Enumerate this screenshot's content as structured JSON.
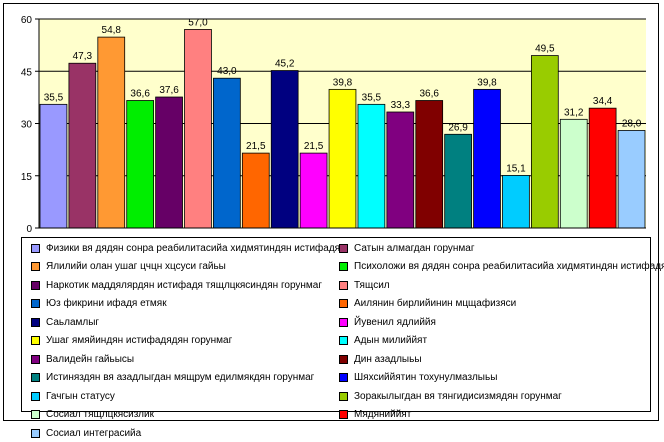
{
  "chart_data": {
    "type": "bar",
    "ylim": [
      0,
      60
    ],
    "yticks": [
      "0",
      "15",
      "30",
      "45",
      "60"
    ],
    "grid": true,
    "legend_position": "bottom",
    "bars": [
      {
        "label": "Физики вя дядян сонра реабилитасийа хидмятиндян истифадя",
        "value": 35.5,
        "value_label": "35,5",
        "color": "#9999ff"
      },
      {
        "label": "Сатын алмагдан горунмаг",
        "value": 47.3,
        "value_label": "47,3",
        "color": "#993366"
      },
      {
        "label": "Ялилийи олан ушаг цчцн хцсуси гайьы",
        "value": 54.8,
        "value_label": "54,8",
        "color": "#ff9933"
      },
      {
        "label": "Психоложи вя дядян сонра реабилитасийа хидмятиндян истифадя",
        "value": 36.6,
        "value_label": "36,6",
        "color": "#00ee00"
      },
      {
        "label": "Наркотик маддялярдян истифадя тящлцкясиндян горунмаг",
        "value": 37.6,
        "value_label": "37,6",
        "color": "#660066"
      },
      {
        "label": "Тящсил",
        "value": 57.0,
        "value_label": "57,0",
        "color": "#ff8080"
      },
      {
        "label": "Юз фикрини ифадя етмяк",
        "value": 43.0,
        "value_label": "43,0",
        "color": "#0066cc"
      },
      {
        "label": "Аилянин бирлийинин мцщафизяси",
        "value": 21.5,
        "value_label": "21,5",
        "color": "#ff6600"
      },
      {
        "label": "Саьламлыг",
        "value": 45.2,
        "value_label": "45,2",
        "color": "#000080"
      },
      {
        "label": "Йувенил ядлиййя",
        "value": 21.5,
        "value_label": "21,5",
        "color": "#ff00ff"
      },
      {
        "label": "Ушаг ямяйиндян истифадядян горунмаг",
        "value": 39.8,
        "value_label": "39,8",
        "color": "#ffff00"
      },
      {
        "label": "Адын милиййят",
        "value": 35.5,
        "value_label": "35,5",
        "color": "#00ffff"
      },
      {
        "label": "Валидейн гайьысы",
        "value": 33.3,
        "value_label": "33,3",
        "color": "#800080"
      },
      {
        "label": "Дин азадлыьы",
        "value": 36.6,
        "value_label": "36,6",
        "color": "#800000"
      },
      {
        "label": "Иcтиняздян вя азадлыгдан мящрум едилмякдян горунмаг",
        "value": 26.9,
        "value_label": "26,9",
        "color": "#008080"
      },
      {
        "label": "Шяхсиййятин тохунулмазлыьы",
        "value": 39.8,
        "value_label": "39,8",
        "color": "#0000ff"
      },
      {
        "label": "Гачгын статусу",
        "value": 15.1,
        "value_label": "15,1",
        "color": "#00ccff"
      },
      {
        "label": "Зоракылыгдан вя тянгидисизмядян горунмаг",
        "value": 49.5,
        "value_label": "49,5",
        "color": "#99cc00"
      },
      {
        "label": "Сосиал тящлцкясизлик",
        "value": 31.2,
        "value_label": "31,2",
        "color": "#ccffcc"
      },
      {
        "label": "Мядяниййят",
        "value": 34.4,
        "value_label": "34,4",
        "color": "#ff0000"
      },
      {
        "label": "Сосиал интеграсийа",
        "value": 28.0,
        "value_label": "28,0",
        "color": "#99ccff"
      }
    ]
  },
  "colors": {
    "plot_background": "#ffffcc",
    "grid": "#000000"
  }
}
